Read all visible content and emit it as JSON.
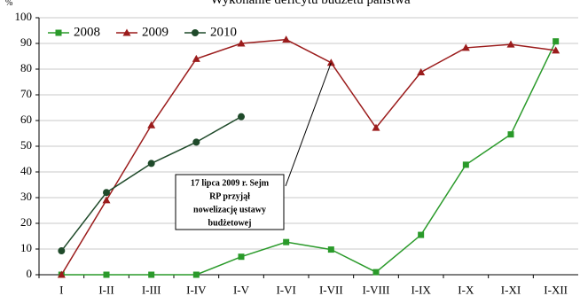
{
  "chart_data": {
    "type": "line",
    "title": "Wykonanie deficytu budżetu państwa",
    "y_label": "%",
    "categories": [
      "I",
      "I-II",
      "I-III",
      "I-IV",
      "I-V",
      "I-VI",
      "I-VII",
      "I-VIII",
      "I-IX",
      "I-X",
      "I-XI",
      "I-XII"
    ],
    "series": [
      {
        "name": "2008",
        "color": "#2a9a2a",
        "marker": "square",
        "values": [
          0,
          0,
          0,
          0,
          7,
          12.7,
          9.8,
          1,
          15.5,
          42.8,
          54.6,
          90.8
        ]
      },
      {
        "name": "2009",
        "color": "#9b1c1c",
        "marker": "triangle",
        "values": [
          0,
          29,
          58.2,
          84,
          90,
          91.5,
          82.5,
          57.2,
          78.8,
          88.3,
          89.6,
          87.3
        ]
      },
      {
        "name": "2010",
        "color": "#1f4a2a",
        "marker": "circle",
        "values": [
          9.3,
          32,
          43.3,
          51.6,
          61.5,
          null,
          null,
          null,
          null,
          null,
          null,
          null
        ]
      }
    ],
    "ylim": [
      0,
      100
    ],
    "yticks": [
      0,
      10,
      20,
      30,
      40,
      50,
      60,
      70,
      80,
      90,
      100
    ],
    "grid": true,
    "legend": "top-left",
    "annotation": {
      "lines": [
        "17 lipca 2009 r. Sejm",
        "RP przyjął",
        "nowelizację ustawy",
        "budżetowej"
      ],
      "target_series": 1,
      "target_index": 6
    }
  }
}
